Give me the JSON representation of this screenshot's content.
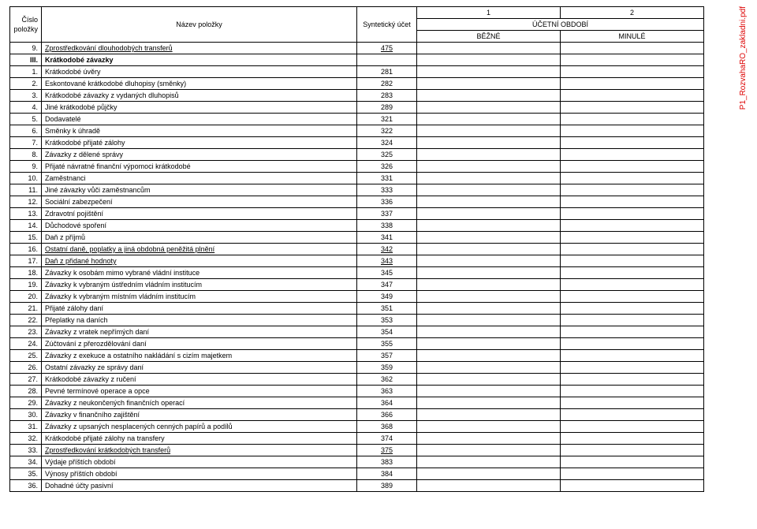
{
  "sidelabel": "P1_RozvahaRO_zakladni.pdf",
  "header": {
    "colNum": "Číslo položky",
    "colName": "Název položky",
    "colAcct": "Syntetický účet",
    "period12": [
      "1",
      "2"
    ],
    "periodTitle": "ÚČETNÍ OBDOBÍ",
    "periodSub": [
      "BĚŽNÉ",
      "MINULÉ"
    ]
  },
  "rows": [
    {
      "num": "9.",
      "name": "Zprostředkování dlouhodobých transferů",
      "acct": "475",
      "u": true
    },
    {
      "num": "III.",
      "name": "Krátkodobé závazky",
      "bold": true,
      "acct": ""
    },
    {
      "num": "1.",
      "name": "Krátkodobé úvěry",
      "acct": "281"
    },
    {
      "num": "2.",
      "name": "Eskontované krátkodobé dluhopisy (směnky)",
      "acct": "282"
    },
    {
      "num": "3.",
      "name": "Krátkodobé závazky z vydaných dluhopisů",
      "acct": "283"
    },
    {
      "num": "4.",
      "name": "Jiné krátkodobé půjčky",
      "acct": "289"
    },
    {
      "num": "5.",
      "name": "Dodavatelé",
      "acct": "321"
    },
    {
      "num": "6.",
      "name": "Směnky k úhradě",
      "acct": "322"
    },
    {
      "num": "7.",
      "name": "Krátkodobé přijaté zálohy",
      "acct": "324"
    },
    {
      "num": "8.",
      "name": "Závazky z dělené správy",
      "acct": "325"
    },
    {
      "num": "9.",
      "name": "Přijaté návratné finanční výpomoci krátkodobé",
      "acct": "326"
    },
    {
      "num": "10.",
      "name": "Zaměstnanci",
      "acct": "331"
    },
    {
      "num": "11.",
      "name": "Jiné závazky vůči zaměstnancům",
      "acct": "333"
    },
    {
      "num": "12.",
      "name": "Sociální zabezpečení",
      "acct": "336"
    },
    {
      "num": "13.",
      "name": "Zdravotní pojištění",
      "acct": "337"
    },
    {
      "num": "14.",
      "name": "Důchodové spoření",
      "acct": "338"
    },
    {
      "num": "15.",
      "name": "Daň z příjmů",
      "acct": "341"
    },
    {
      "num": "16.",
      "name": "Ostatní daně, poplatky a jiná obdobná peněžitá plnění",
      "acct": "342",
      "u": true
    },
    {
      "num": "17.",
      "name": "Daň z přidané hodnoty",
      "acct": "343",
      "u": true
    },
    {
      "num": "18.",
      "name": "Závazky k osobám mimo vybrané vládní instituce",
      "acct": "345"
    },
    {
      "num": "19.",
      "name": "Závazky k vybraným ústředním vládním institucím",
      "acct": "347"
    },
    {
      "num": "20.",
      "name": "Závazky k vybraným místním vládním institucím",
      "acct": "349"
    },
    {
      "num": "21.",
      "name": "Přijaté zálohy daní",
      "acct": "351"
    },
    {
      "num": "22.",
      "name": "Přeplatky na daních",
      "acct": "353"
    },
    {
      "num": "23.",
      "name": "Závazky z vratek nepřímých daní",
      "acct": "354"
    },
    {
      "num": "24.",
      "name": "Zúčtování z přerozdělování daní",
      "acct": "355"
    },
    {
      "num": "25.",
      "name": "Závazky z exekuce a ostatního nakládání s cizím majetkem",
      "acct": "357"
    },
    {
      "num": "26.",
      "name": "Ostatní závazky ze správy daní",
      "acct": "359"
    },
    {
      "num": "27.",
      "name": "Krátkodobé závazky z ručení",
      "acct": "362"
    },
    {
      "num": "28.",
      "name": "Pevné termínové operace a opce",
      "acct": "363"
    },
    {
      "num": "29.",
      "name": "Závazky z neukončených finančních operací",
      "acct": "364"
    },
    {
      "num": "30.",
      "name": "Závazky v finančního zajištění",
      "acct": "366"
    },
    {
      "num": "31.",
      "name": "Závazky z upsaných nesplacených cenných papírů a podílů",
      "acct": "368"
    },
    {
      "num": "32.",
      "name": "Krátkodobé přijaté zálohy na transfery",
      "acct": "374"
    },
    {
      "num": "33.",
      "name": "Zprostředkování krátkodobých transferů",
      "acct": "375",
      "u": true
    },
    {
      "num": "34.",
      "name": "Výdaje příštích období",
      "acct": "383"
    },
    {
      "num": "35.",
      "name": "Výnosy příštích období",
      "acct": "384"
    },
    {
      "num": "36.",
      "name": "Dohadné účty pasivní",
      "acct": "389"
    }
  ]
}
